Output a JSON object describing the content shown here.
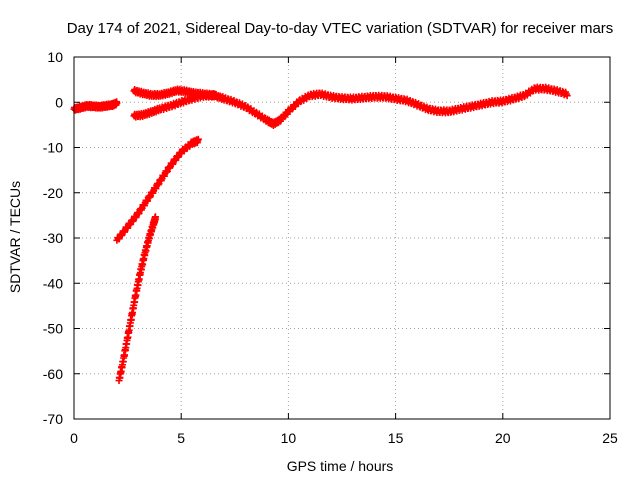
{
  "chart_data": {
    "type": "scatter",
    "title": "Day 174 of 2021, Sidereal Day-to-day VTEC variation (SDTVAR) for receiver mars",
    "xlabel": "GPS time / hours",
    "ylabel": "SDTVAR / TECUs",
    "xlim": [
      0,
      25
    ],
    "ylim": [
      -70,
      10
    ],
    "xticks": [
      0,
      5,
      10,
      15,
      20,
      25
    ],
    "yticks": [
      10,
      0,
      -10,
      -20,
      -30,
      -40,
      -50,
      -60,
      -70
    ],
    "grid": true,
    "marker": "plus",
    "color": "#ff0000",
    "series": [
      {
        "name": "segment-early",
        "x": [
          0.0,
          0.3,
          0.6,
          0.9,
          1.2,
          1.5,
          1.8,
          2.0
        ],
        "y": [
          -1.5,
          -1.2,
          -0.8,
          -0.9,
          -1.0,
          -0.8,
          -0.6,
          -0.2
        ]
      },
      {
        "name": "segment-high-arc",
        "x": [
          2.8,
          3.2,
          3.6,
          4.0,
          4.4,
          4.8,
          5.2,
          5.6,
          6.0,
          6.4,
          6.6
        ],
        "y": [
          2.5,
          2.0,
          1.6,
          1.6,
          2.0,
          2.6,
          2.4,
          2.0,
          1.8,
          1.6,
          1.5
        ]
      },
      {
        "name": "segment-low-arc",
        "x": [
          2.8,
          3.2,
          3.6,
          4.0,
          4.5,
          5.0,
          5.5,
          6.0,
          6.5
        ],
        "y": [
          -3.0,
          -2.8,
          -2.2,
          -1.5,
          -0.8,
          0.0,
          0.8,
          1.4,
          1.5
        ]
      },
      {
        "name": "segment-main",
        "x": [
          6.6,
          7.0,
          7.5,
          8.0,
          8.5,
          9.0,
          9.3,
          9.6,
          10.0,
          10.5,
          11.0,
          11.5,
          12.0,
          12.5,
          13.0,
          13.5,
          14.0,
          14.5,
          15.0,
          15.5,
          16.0,
          16.5,
          17.0,
          17.5,
          18.0,
          18.5,
          19.0,
          19.5,
          20.0,
          20.5,
          21.0,
          21.5,
          22.0,
          22.5,
          23.0
        ],
        "y": [
          1.4,
          0.8,
          0.0,
          -1.0,
          -2.5,
          -4.0,
          -4.8,
          -4.0,
          -2.0,
          0.2,
          1.5,
          1.8,
          1.2,
          0.9,
          0.8,
          1.0,
          1.2,
          1.2,
          0.8,
          0.4,
          -0.5,
          -1.5,
          -2.0,
          -2.0,
          -1.5,
          -1.0,
          -0.5,
          0.0,
          0.2,
          0.8,
          1.5,
          3.0,
          3.0,
          2.5,
          1.8
        ]
      },
      {
        "name": "segment-rising-upper",
        "x": [
          2.0,
          2.5,
          3.0,
          3.5,
          4.0,
          4.5,
          5.0,
          5.5,
          5.8
        ],
        "y": [
          -30.5,
          -27.5,
          -24.5,
          -21.0,
          -17.5,
          -14.0,
          -11.0,
          -9.0,
          -8.5
        ]
      },
      {
        "name": "segment-rising-steep",
        "x": [
          2.1,
          2.3,
          2.5,
          2.7,
          2.9,
          3.1,
          3.3,
          3.5,
          3.7,
          3.8
        ],
        "y": [
          -61.5,
          -57.0,
          -52.0,
          -47.0,
          -42.0,
          -37.5,
          -33.5,
          -30.0,
          -27.0,
          -25.5
        ]
      }
    ]
  }
}
